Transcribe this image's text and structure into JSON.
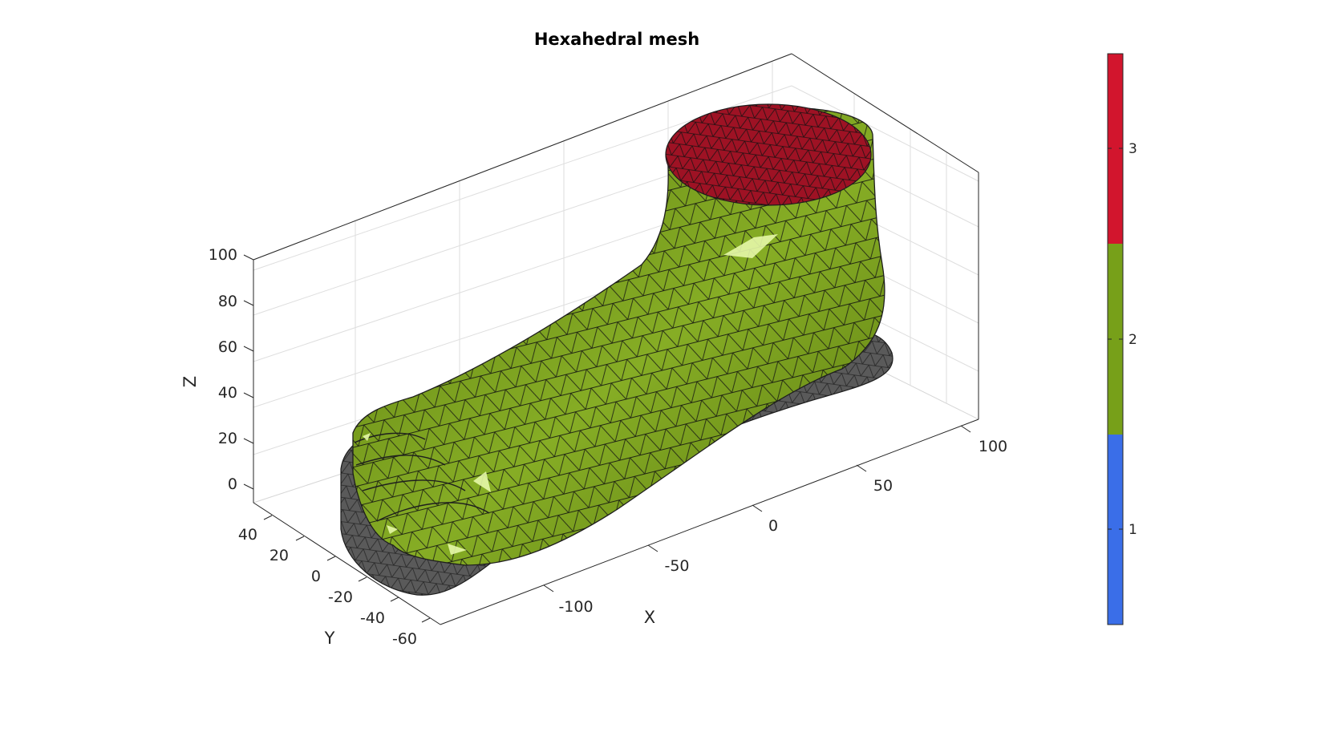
{
  "figure": {
    "title": "Hexahedral mesh",
    "axes": {
      "xlabel": "X",
      "ylabel": "Y",
      "zlabel": "Z",
      "x_ticks": [
        "-100",
        "-50",
        "0",
        "50",
        "100"
      ],
      "y_ticks": [
        "40",
        "20",
        "0",
        "-20",
        "-40",
        "-60"
      ],
      "z_ticks": [
        "0",
        "20",
        "40",
        "60",
        "80",
        "100"
      ],
      "grid": true,
      "box": true
    },
    "colorbar": {
      "ticks": [
        "1",
        "2",
        "3"
      ],
      "colors": [
        "#3a6ee8",
        "#77a019",
        "#d2152d"
      ]
    },
    "mesh": {
      "foot_color": "#77a019",
      "top_cap_color": "#9e1224",
      "sole_color": "#5a5a5a",
      "edge_color": "#000000"
    }
  }
}
